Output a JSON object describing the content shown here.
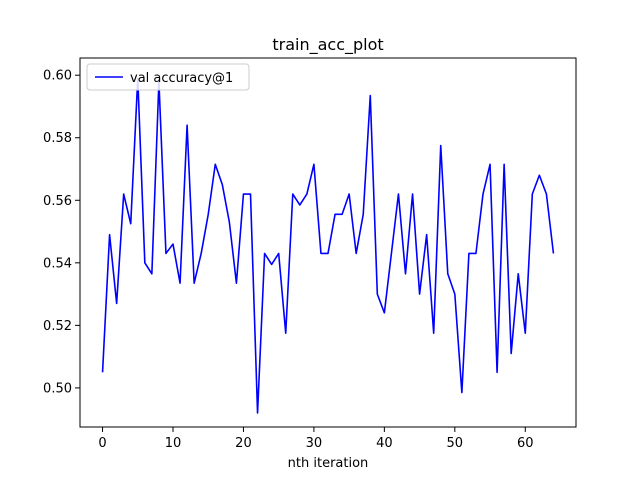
{
  "chart_data": {
    "type": "line",
    "title": "train_acc_plot",
    "xlabel": "nth iteration",
    "ylabel": "",
    "xlim": [
      -3.2,
      67.2
    ],
    "ylim": [
      0.4875,
      0.6055
    ],
    "xticks": [
      0,
      10,
      20,
      30,
      40,
      50,
      60
    ],
    "yticks": [
      0.5,
      0.52,
      0.54,
      0.56,
      0.58,
      0.6
    ],
    "ytick_labels": [
      "0.50",
      "0.52",
      "0.54",
      "0.56",
      "0.58",
      "0.60"
    ],
    "legend_position": "top-left",
    "grid": false,
    "series": [
      {
        "name": "val accuracy@1",
        "color": "#0000ff",
        "x": [
          0,
          1,
          2,
          3,
          4,
          5,
          6,
          7,
          8,
          9,
          10,
          11,
          12,
          13,
          14,
          15,
          16,
          17,
          18,
          19,
          20,
          21,
          22,
          23,
          24,
          25,
          26,
          27,
          28,
          29,
          30,
          31,
          32,
          33,
          34,
          35,
          36,
          37,
          38,
          39,
          40,
          41,
          42,
          43,
          44,
          45,
          46,
          47,
          48,
          49,
          50,
          51,
          52,
          53,
          54,
          55,
          56,
          57,
          58,
          59,
          60,
          61,
          62,
          63,
          64
        ],
        "values": [
          0.505,
          0.549,
          0.527,
          0.562,
          0.5525,
          0.599,
          0.54,
          0.5365,
          0.598,
          0.543,
          0.546,
          0.5335,
          0.584,
          0.5335,
          0.543,
          0.5555,
          0.5715,
          0.565,
          0.553,
          0.5335,
          0.562,
          0.562,
          0.492,
          0.543,
          0.5395,
          0.543,
          0.5175,
          0.562,
          0.5585,
          0.562,
          0.5715,
          0.543,
          0.543,
          0.5555,
          0.5555,
          0.562,
          0.543,
          0.5555,
          0.5935,
          0.53,
          0.524,
          0.543,
          0.562,
          0.5365,
          0.562,
          0.53,
          0.549,
          0.5175,
          0.5775,
          0.5365,
          0.53,
          0.4985,
          0.543,
          0.543,
          0.562,
          0.5715,
          0.505,
          0.5715,
          0.511,
          0.5365,
          0.5175,
          0.562,
          0.568,
          0.562,
          0.543
        ]
      }
    ]
  }
}
